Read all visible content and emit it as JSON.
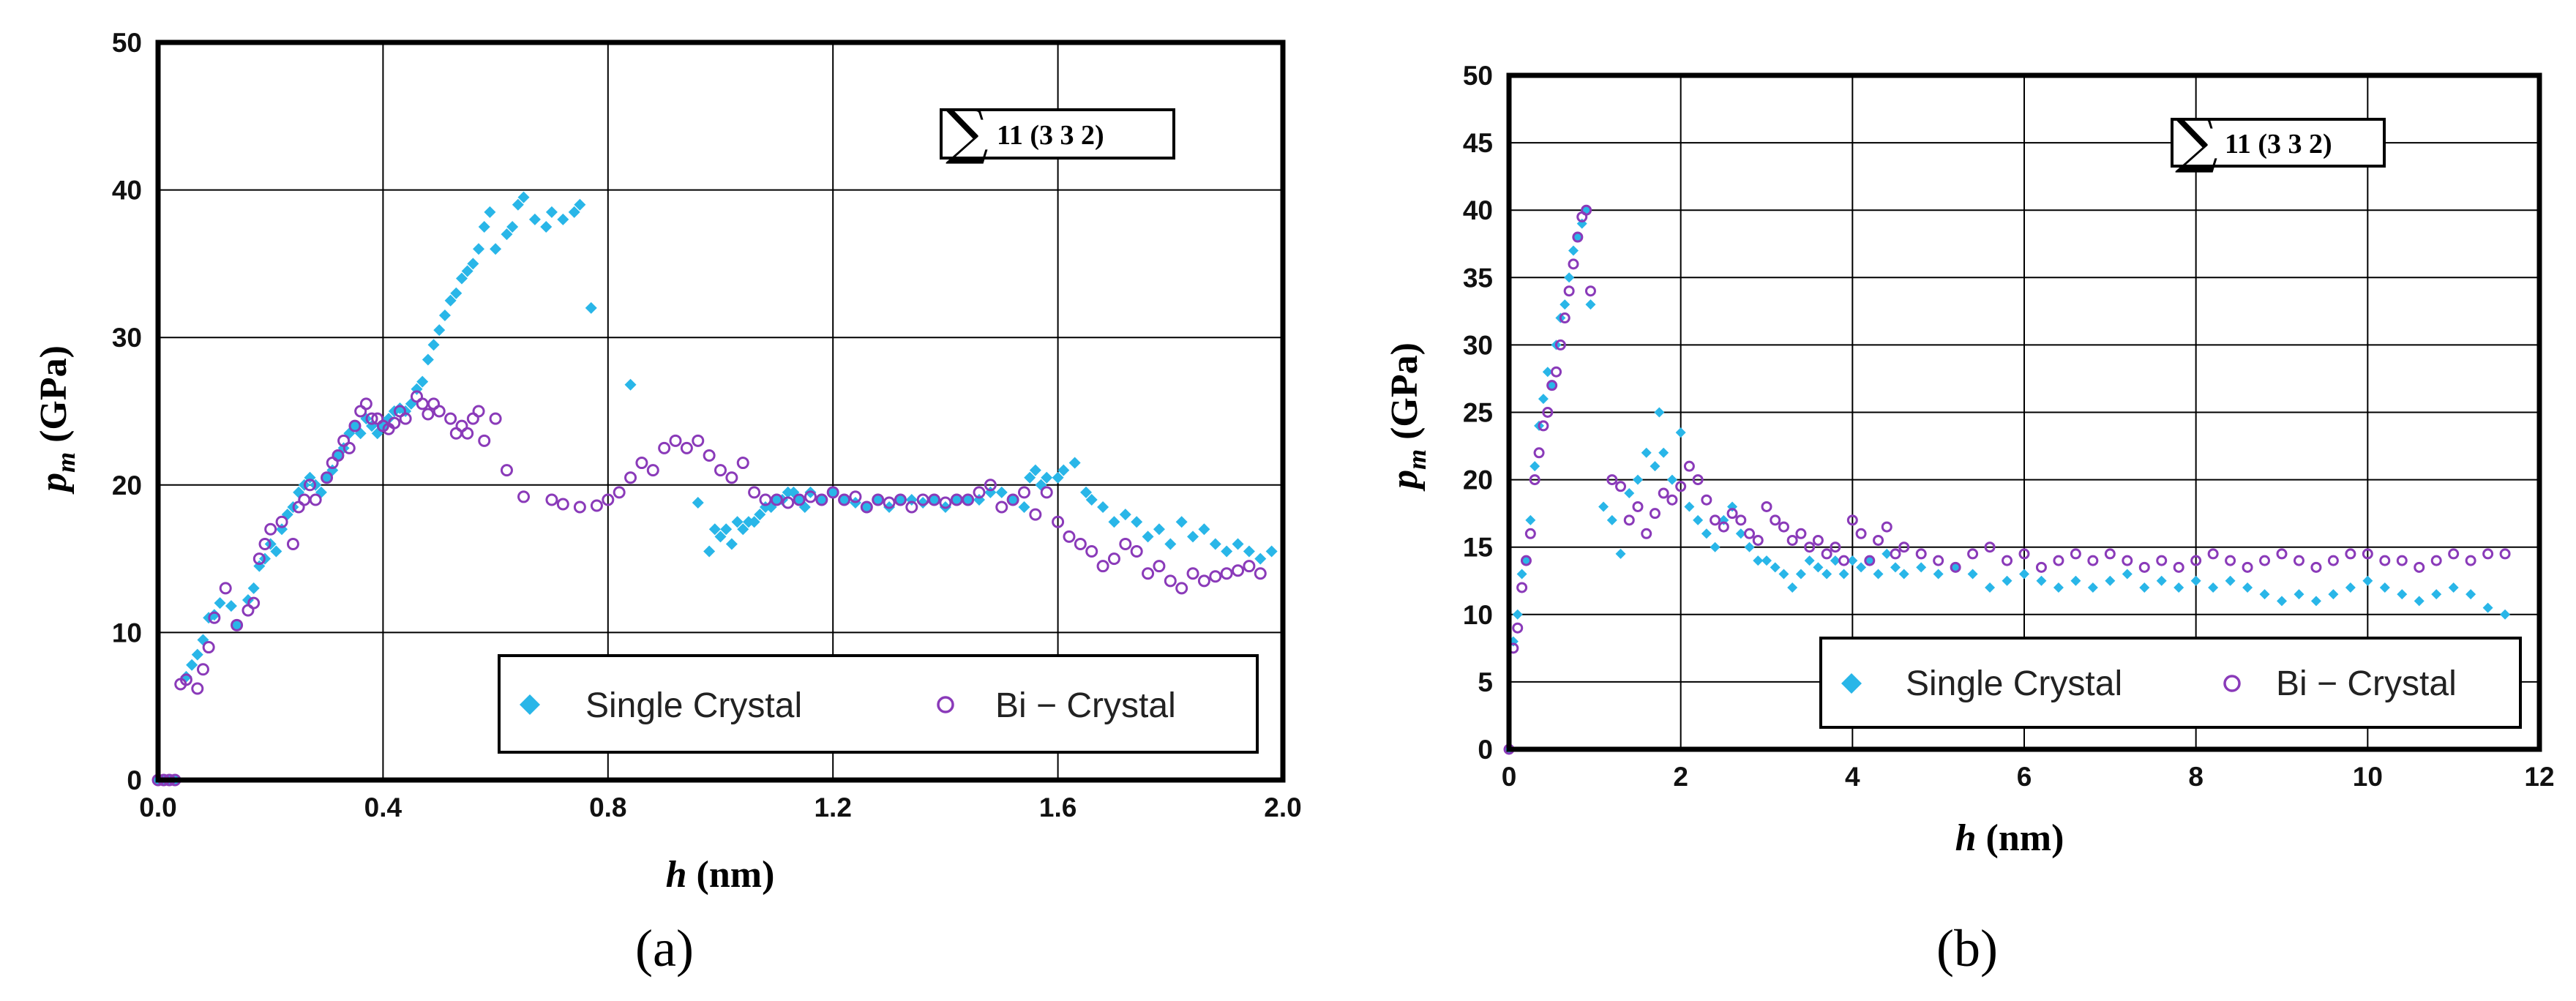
{
  "chart_data": [
    {
      "type": "scatter",
      "caption": "(a)",
      "xlabel": "h (nm)",
      "xlabel_var": "h",
      "xlabel_unit": " (nm)",
      "ylabel": "p_m (GPa)",
      "ylabel_var": "p",
      "ylabel_sub": "m",
      "ylabel_unit": " (GPa)",
      "xlim": [
        0,
        2.0
      ],
      "ylim": [
        0,
        50
      ],
      "xticks": [
        0.0,
        0.4,
        0.8,
        1.2,
        1.6,
        2.0
      ],
      "xtick_labels": [
        "0.0",
        "0.4",
        "0.8",
        "1.2",
        "1.6",
        "2.0"
      ],
      "yticks": [
        0,
        10,
        20,
        30,
        40,
        50
      ],
      "ytick_labels": [
        "0",
        "10",
        "20",
        "30",
        "40",
        "50"
      ],
      "grid": true,
      "annotation": {
        "symbol": "∑",
        "text": "11 (3 3 2)"
      },
      "legend_position": "bottom-right",
      "series": [
        {
          "name": "Single Crystal",
          "marker": "diamond",
          "color": "#29b6e8",
          "x": [
            0.0,
            0.01,
            0.02,
            0.03,
            0.05,
            0.06,
            0.07,
            0.08,
            0.09,
            0.1,
            0.11,
            0.13,
            0.14,
            0.16,
            0.17,
            0.18,
            0.19,
            0.2,
            0.21,
            0.22,
            0.23,
            0.24,
            0.25,
            0.26,
            0.27,
            0.28,
            0.29,
            0.3,
            0.31,
            0.32,
            0.33,
            0.34,
            0.35,
            0.36,
            0.37,
            0.38,
            0.39,
            0.4,
            0.41,
            0.42,
            0.43,
            0.44,
            0.45,
            0.46,
            0.47,
            0.48,
            0.49,
            0.5,
            0.51,
            0.52,
            0.53,
            0.54,
            0.55,
            0.56,
            0.57,
            0.58,
            0.59,
            0.6,
            0.62,
            0.63,
            0.64,
            0.65,
            0.67,
            0.69,
            0.7,
            0.72,
            0.74,
            0.75,
            0.77,
            0.84,
            0.96,
            0.98,
            0.99,
            1.0,
            1.01,
            1.02,
            1.03,
            1.04,
            1.05,
            1.06,
            1.07,
            1.08,
            1.09,
            1.1,
            1.11,
            1.12,
            1.13,
            1.14,
            1.15,
            1.16,
            1.18,
            1.2,
            1.22,
            1.24,
            1.26,
            1.28,
            1.3,
            1.32,
            1.34,
            1.36,
            1.38,
            1.4,
            1.42,
            1.44,
            1.46,
            1.48,
            1.5,
            1.52,
            1.54,
            1.55,
            1.56,
            1.57,
            1.58,
            1.6,
            1.61,
            1.63,
            1.65,
            1.66,
            1.68,
            1.7,
            1.72,
            1.74,
            1.76,
            1.78,
            1.8,
            1.82,
            1.84,
            1.86,
            1.88,
            1.9,
            1.92,
            1.94,
            1.96,
            1.98
          ],
          "y": [
            0.0,
            0.0,
            0.0,
            0.0,
            7.0,
            7.8,
            8.5,
            9.5,
            11.0,
            11.2,
            12.0,
            11.8,
            10.5,
            12.2,
            13.0,
            14.5,
            15.0,
            16.0,
            15.5,
            17.0,
            18.0,
            18.5,
            19.5,
            20.0,
            20.5,
            20.0,
            19.5,
            20.5,
            21.0,
            22.0,
            22.5,
            23.5,
            24.0,
            23.5,
            24.5,
            24.0,
            23.5,
            24.0,
            24.5,
            25.0,
            25.2,
            25.0,
            25.5,
            26.5,
            27.0,
            28.5,
            29.5,
            30.5,
            31.5,
            32.5,
            33.0,
            34.0,
            34.5,
            35.0,
            36.0,
            37.5,
            38.5,
            36.0,
            37.0,
            37.5,
            39.0,
            39.5,
            38.0,
            37.5,
            38.5,
            38.0,
            38.5,
            39.0,
            32.0,
            26.8,
            18.8,
            15.5,
            17.0,
            16.5,
            17.0,
            16.0,
            17.5,
            17.0,
            17.5,
            17.5,
            18.0,
            18.5,
            18.5,
            19.0,
            19.0,
            19.5,
            19.5,
            19.0,
            18.5,
            19.5,
            19.0,
            19.5,
            19.0,
            18.8,
            18.5,
            19.0,
            18.5,
            19.0,
            19.0,
            18.8,
            19.0,
            18.5,
            19.0,
            19.0,
            19.0,
            19.5,
            19.5,
            19.0,
            18.5,
            20.5,
            21.0,
            20.0,
            20.5,
            20.5,
            21.0,
            21.5,
            19.5,
            19.0,
            18.5,
            17.5,
            18.0,
            17.5,
            16.5,
            17.0,
            16.0,
            17.5,
            16.5,
            17.0,
            16.0,
            15.5,
            16.0,
            15.5,
            15.0,
            15.5
          ]
        },
        {
          "name": "Bi − Crystal",
          "marker": "circle",
          "color": "#8a3ab9",
          "x": [
            0.0,
            0.01,
            0.02,
            0.03,
            0.04,
            0.05,
            0.07,
            0.08,
            0.09,
            0.1,
            0.12,
            0.14,
            0.16,
            0.17,
            0.18,
            0.19,
            0.2,
            0.22,
            0.24,
            0.25,
            0.26,
            0.27,
            0.28,
            0.3,
            0.31,
            0.32,
            0.33,
            0.34,
            0.35,
            0.36,
            0.37,
            0.38,
            0.39,
            0.4,
            0.41,
            0.42,
            0.43,
            0.44,
            0.46,
            0.47,
            0.48,
            0.49,
            0.5,
            0.52,
            0.53,
            0.54,
            0.55,
            0.56,
            0.57,
            0.58,
            0.6,
            0.62,
            0.65,
            0.7,
            0.72,
            0.75,
            0.78,
            0.8,
            0.82,
            0.84,
            0.86,
            0.88,
            0.9,
            0.92,
            0.94,
            0.96,
            0.98,
            1.0,
            1.02,
            1.04,
            1.06,
            1.08,
            1.1,
            1.12,
            1.14,
            1.16,
            1.18,
            1.2,
            1.22,
            1.24,
            1.26,
            1.28,
            1.3,
            1.32,
            1.34,
            1.36,
            1.38,
            1.4,
            1.42,
            1.44,
            1.46,
            1.48,
            1.5,
            1.52,
            1.54,
            1.56,
            1.58,
            1.6,
            1.62,
            1.64,
            1.66,
            1.68,
            1.7,
            1.72,
            1.74,
            1.76,
            1.78,
            1.8,
            1.82,
            1.84,
            1.86,
            1.88,
            1.9,
            1.92,
            1.94,
            1.96
          ],
          "y": [
            0.0,
            0.0,
            0.0,
            0.0,
            6.5,
            6.8,
            6.2,
            7.5,
            9.0,
            11.0,
            13.0,
            10.5,
            11.5,
            12.0,
            15.0,
            16.0,
            17.0,
            17.5,
            16.0,
            18.5,
            19.0,
            20.0,
            19.0,
            20.5,
            21.5,
            22.0,
            23.0,
            22.5,
            24.0,
            25.0,
            25.5,
            24.5,
            24.5,
            24.0,
            23.8,
            24.2,
            25.0,
            24.5,
            26.0,
            25.5,
            24.8,
            25.5,
            25.0,
            24.5,
            23.5,
            24.0,
            23.5,
            24.5,
            25.0,
            23.0,
            24.5,
            21.0,
            19.2,
            19.0,
            18.7,
            18.5,
            18.6,
            19.0,
            19.5,
            20.5,
            21.5,
            21.0,
            22.5,
            23.0,
            22.5,
            23.0,
            22.0,
            21.0,
            20.5,
            21.5,
            19.5,
            19.0,
            19.0,
            18.8,
            19.0,
            19.2,
            19.0,
            19.5,
            19.0,
            19.2,
            18.5,
            19.0,
            18.8,
            19.0,
            18.5,
            19.0,
            19.0,
            18.8,
            19.0,
            19.0,
            19.5,
            20.0,
            18.5,
            19.0,
            19.5,
            18.0,
            19.5,
            17.5,
            16.5,
            16.0,
            15.5,
            14.5,
            15.0,
            16.0,
            15.5,
            14.0,
            14.5,
            13.5,
            13.0,
            14.0,
            13.5,
            13.8,
            14.0,
            14.2,
            14.5,
            14.0
          ]
        }
      ]
    },
    {
      "type": "scatter",
      "caption": "(b)",
      "xlabel": "h (nm)",
      "xlabel_var": "h",
      "xlabel_unit": " (nm)",
      "ylabel": "p_m (GPa)",
      "ylabel_var": "p",
      "ylabel_sub": "m",
      "ylabel_unit": " (GPa)",
      "xlim": [
        0,
        12
      ],
      "ylim": [
        0,
        50
      ],
      "xticks": [
        0,
        2,
        4,
        6,
        8,
        10,
        12
      ],
      "xtick_labels": [
        "0",
        "2",
        "4",
        "6",
        "8",
        "10",
        "12"
      ],
      "yticks": [
        0,
        5,
        10,
        15,
        20,
        25,
        30,
        35,
        40,
        45,
        50
      ],
      "ytick_labels": [
        "0",
        "5",
        "10",
        "15",
        "20",
        "25",
        "30",
        "35",
        "40",
        "45",
        "50"
      ],
      "grid": true,
      "annotation": {
        "symbol": "∑",
        "text": "11 (3 3 2)"
      },
      "legend_position": "bottom-right",
      "series": [
        {
          "name": "Single Crystal",
          "marker": "diamond",
          "color": "#29b6e8",
          "x": [
            0.0,
            0.05,
            0.1,
            0.15,
            0.2,
            0.25,
            0.3,
            0.35,
            0.4,
            0.45,
            0.5,
            0.55,
            0.6,
            0.65,
            0.7,
            0.75,
            0.8,
            0.85,
            0.9,
            0.95,
            1.1,
            1.2,
            1.3,
            1.4,
            1.5,
            1.6,
            1.7,
            1.75,
            1.8,
            1.9,
            2.0,
            2.1,
            2.2,
            2.3,
            2.4,
            2.5,
            2.6,
            2.7,
            2.8,
            2.9,
            3.0,
            3.1,
            3.2,
            3.3,
            3.4,
            3.5,
            3.6,
            3.7,
            3.8,
            3.9,
            4.0,
            4.1,
            4.2,
            4.3,
            4.4,
            4.5,
            4.6,
            4.8,
            5.0,
            5.2,
            5.4,
            5.6,
            5.8,
            6.0,
            6.2,
            6.4,
            6.6,
            6.8,
            7.0,
            7.2,
            7.4,
            7.6,
            7.8,
            8.0,
            8.2,
            8.4,
            8.6,
            8.8,
            9.0,
            9.2,
            9.4,
            9.6,
            9.8,
            10.0,
            10.2,
            10.4,
            10.6,
            10.8,
            11.0,
            11.2,
            11.4,
            11.6
          ],
          "y": [
            0.0,
            8.0,
            10.0,
            13.0,
            14.0,
            17.0,
            21.0,
            24.0,
            26.0,
            28.0,
            27.0,
            30.0,
            32.0,
            33.0,
            35.0,
            37.0,
            38.0,
            39.0,
            40.0,
            33.0,
            18.0,
            17.0,
            14.5,
            19.0,
            20.0,
            22.0,
            21.0,
            25.0,
            22.0,
            20.0,
            23.5,
            18.0,
            17.0,
            16.0,
            15.0,
            17.0,
            18.0,
            16.0,
            15.0,
            14.0,
            14.0,
            13.5,
            13.0,
            12.0,
            13.0,
            14.0,
            13.5,
            13.0,
            14.0,
            13.0,
            14.0,
            13.5,
            14.0,
            13.0,
            14.5,
            13.5,
            13.0,
            13.5,
            13.0,
            13.5,
            13.0,
            12.0,
            12.5,
            13.0,
            12.5,
            12.0,
            12.5,
            12.0,
            12.5,
            13.0,
            12.0,
            12.5,
            12.0,
            12.5,
            12.0,
            12.5,
            12.0,
            11.5,
            11.0,
            11.5,
            11.0,
            11.5,
            12.0,
            12.5,
            12.0,
            11.5,
            11.0,
            11.5,
            12.0,
            11.5,
            10.5,
            10.0
          ]
        },
        {
          "name": "Bi − Crystal",
          "marker": "circle",
          "color": "#8a3ab9",
          "x": [
            0.0,
            0.05,
            0.1,
            0.15,
            0.2,
            0.25,
            0.3,
            0.35,
            0.4,
            0.45,
            0.5,
            0.55,
            0.6,
            0.65,
            0.7,
            0.75,
            0.8,
            0.85,
            0.9,
            0.95,
            1.2,
            1.3,
            1.4,
            1.5,
            1.6,
            1.7,
            1.8,
            1.9,
            2.0,
            2.1,
            2.2,
            2.3,
            2.4,
            2.5,
            2.6,
            2.7,
            2.8,
            2.9,
            3.0,
            3.1,
            3.2,
            3.3,
            3.4,
            3.5,
            3.6,
            3.7,
            3.8,
            3.9,
            4.0,
            4.1,
            4.2,
            4.3,
            4.4,
            4.5,
            4.6,
            4.8,
            5.0,
            5.2,
            5.4,
            5.6,
            5.8,
            6.0,
            6.2,
            6.4,
            6.6,
            6.8,
            7.0,
            7.2,
            7.4,
            7.6,
            7.8,
            8.0,
            8.2,
            8.4,
            8.6,
            8.8,
            9.0,
            9.2,
            9.4,
            9.6,
            9.8,
            10.0,
            10.2,
            10.4,
            10.6,
            10.8,
            11.0,
            11.2,
            11.4,
            11.6
          ],
          "y": [
            0.0,
            7.5,
            9.0,
            12.0,
            14.0,
            16.0,
            20.0,
            22.0,
            24.0,
            25.0,
            27.0,
            28.0,
            30.0,
            32.0,
            34.0,
            36.0,
            38.0,
            39.5,
            40.0,
            34.0,
            20.0,
            19.5,
            17.0,
            18.0,
            16.0,
            17.5,
            19.0,
            18.5,
            19.5,
            21.0,
            20.0,
            18.5,
            17.0,
            16.5,
            17.5,
            17.0,
            16.0,
            15.5,
            18.0,
            17.0,
            16.5,
            15.5,
            16.0,
            15.0,
            15.5,
            14.5,
            15.0,
            14.0,
            17.0,
            16.0,
            14.0,
            15.5,
            16.5,
            14.5,
            15.0,
            14.5,
            14.0,
            13.5,
            14.5,
            15.0,
            14.0,
            14.5,
            13.5,
            14.0,
            14.5,
            14.0,
            14.5,
            14.0,
            13.5,
            14.0,
            13.5,
            14.0,
            14.5,
            14.0,
            13.5,
            14.0,
            14.5,
            14.0,
            13.5,
            14.0,
            14.5,
            14.5,
            14.0,
            14.0,
            13.5,
            14.0,
            14.5,
            14.0,
            14.5,
            14.5
          ]
        }
      ]
    }
  ]
}
